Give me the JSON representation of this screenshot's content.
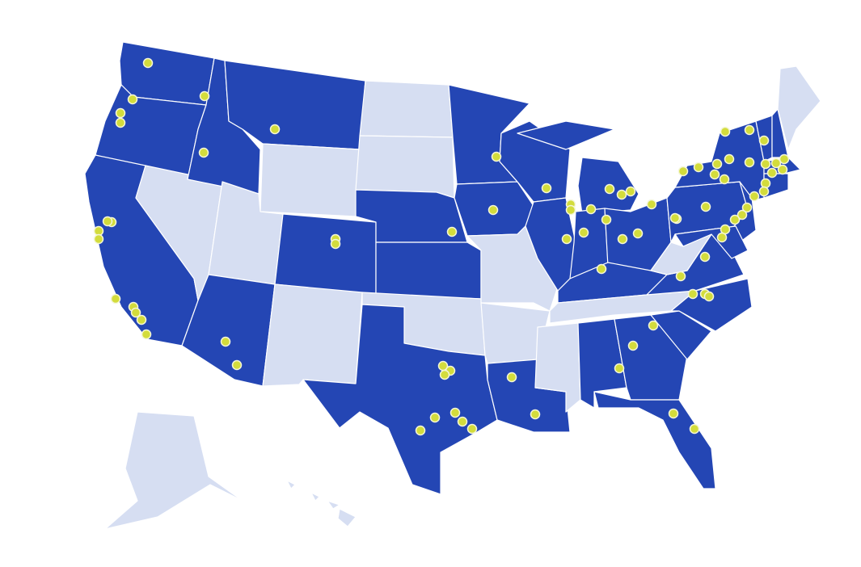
{
  "map": {
    "colors": {
      "highlighted": "#2446b4",
      "not_highlighted": "#d6def2",
      "marker": "#d3dc3c",
      "border": "#ffffff"
    },
    "states": [
      {
        "code": "WA",
        "highlighted": true
      },
      {
        "code": "OR",
        "highlighted": true
      },
      {
        "code": "CA",
        "highlighted": true
      },
      {
        "code": "NV",
        "highlighted": false
      },
      {
        "code": "ID",
        "highlighted": true
      },
      {
        "code": "MT",
        "highlighted": true
      },
      {
        "code": "WY",
        "highlighted": false
      },
      {
        "code": "UT",
        "highlighted": false
      },
      {
        "code": "AZ",
        "highlighted": true
      },
      {
        "code": "CO",
        "highlighted": true
      },
      {
        "code": "NM",
        "highlighted": false
      },
      {
        "code": "ND",
        "highlighted": false
      },
      {
        "code": "SD",
        "highlighted": false
      },
      {
        "code": "NE",
        "highlighted": true
      },
      {
        "code": "KS",
        "highlighted": true
      },
      {
        "code": "OK",
        "highlighted": false
      },
      {
        "code": "TX",
        "highlighted": true
      },
      {
        "code": "MN",
        "highlighted": true
      },
      {
        "code": "IA",
        "highlighted": true
      },
      {
        "code": "MO",
        "highlighted": false
      },
      {
        "code": "AR",
        "highlighted": false
      },
      {
        "code": "LA",
        "highlighted": true
      },
      {
        "code": "WI",
        "highlighted": true
      },
      {
        "code": "IL",
        "highlighted": true
      },
      {
        "code": "MI",
        "highlighted": true
      },
      {
        "code": "IN",
        "highlighted": true
      },
      {
        "code": "OH",
        "highlighted": true
      },
      {
        "code": "KY",
        "highlighted": true
      },
      {
        "code": "TN",
        "highlighted": false
      },
      {
        "code": "MS",
        "highlighted": false
      },
      {
        "code": "AL",
        "highlighted": true
      },
      {
        "code": "GA",
        "highlighted": true
      },
      {
        "code": "FL",
        "highlighted": true
      },
      {
        "code": "SC",
        "highlighted": true
      },
      {
        "code": "NC",
        "highlighted": true
      },
      {
        "code": "VA",
        "highlighted": true
      },
      {
        "code": "WV",
        "highlighted": false
      },
      {
        "code": "PA",
        "highlighted": true
      },
      {
        "code": "NY",
        "highlighted": true
      },
      {
        "code": "NJ",
        "highlighted": true
      },
      {
        "code": "MD",
        "highlighted": true
      },
      {
        "code": "VT",
        "highlighted": true
      },
      {
        "code": "NH",
        "highlighted": true
      },
      {
        "code": "ME",
        "highlighted": false
      },
      {
        "code": "MA",
        "highlighted": true
      },
      {
        "code": "CT",
        "highlighted": true
      },
      {
        "code": "AK",
        "highlighted": false
      },
      {
        "code": "HI",
        "highlighted": false
      }
    ]
  }
}
